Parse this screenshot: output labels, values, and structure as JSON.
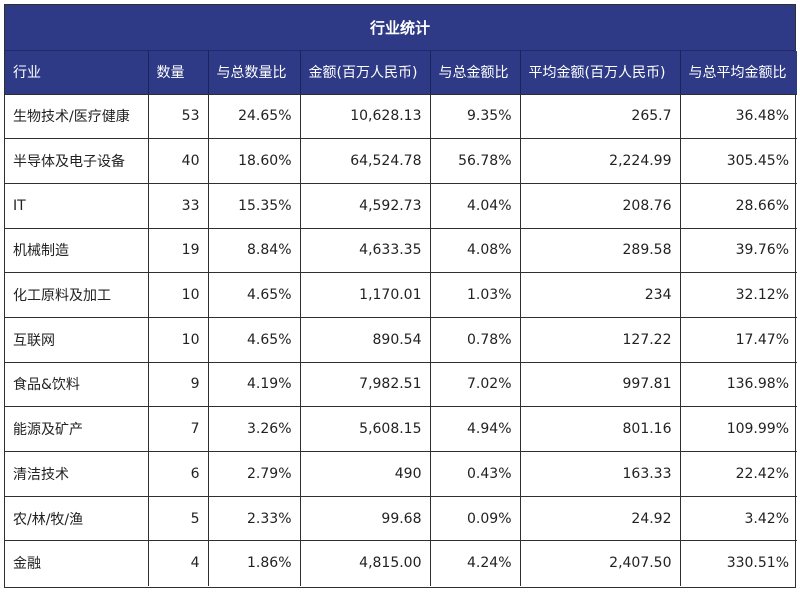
{
  "table": {
    "title": "行业统计",
    "headers": [
      "行业",
      "数量",
      "与总数量比",
      "金额(百万人民币)",
      "与总金额比",
      "平均金额(百万人民币)",
      "与总平均金额比"
    ],
    "rows": [
      [
        "生物技术/医疗健康",
        "53",
        "24.65%",
        "10,628.13",
        "9.35%",
        "265.7",
        "36.48%"
      ],
      [
        "半导体及电子设备",
        "40",
        "18.60%",
        "64,524.78",
        "56.78%",
        "2,224.99",
        "305.45%"
      ],
      [
        "IT",
        "33",
        "15.35%",
        "4,592.73",
        "4.04%",
        "208.76",
        "28.66%"
      ],
      [
        "机械制造",
        "19",
        "8.84%",
        "4,633.35",
        "4.08%",
        "289.58",
        "39.76%"
      ],
      [
        "化工原料及加工",
        "10",
        "4.65%",
        "1,170.01",
        "1.03%",
        "234",
        "32.12%"
      ],
      [
        "互联网",
        "10",
        "4.65%",
        "890.54",
        "0.78%",
        "127.22",
        "17.47%"
      ],
      [
        "食品&饮料",
        "9",
        "4.19%",
        "7,982.51",
        "7.02%",
        "997.81",
        "136.98%"
      ],
      [
        "能源及矿产",
        "7",
        "3.26%",
        "5,608.15",
        "4.94%",
        "801.16",
        "109.99%"
      ],
      [
        "清洁技术",
        "6",
        "2.79%",
        "490",
        "0.43%",
        "163.33",
        "22.42%"
      ],
      [
        "农/林/牧/渔",
        "5",
        "2.33%",
        "99.68",
        "0.09%",
        "24.92",
        "3.42%"
      ],
      [
        "金融",
        "4",
        "1.86%",
        "4,815.00",
        "4.24%",
        "2,407.50",
        "330.51%"
      ]
    ]
  },
  "colors": {
    "header_bg": "#2e3a86",
    "header_text": "#ffffff",
    "grid": "#2f2f2f"
  }
}
